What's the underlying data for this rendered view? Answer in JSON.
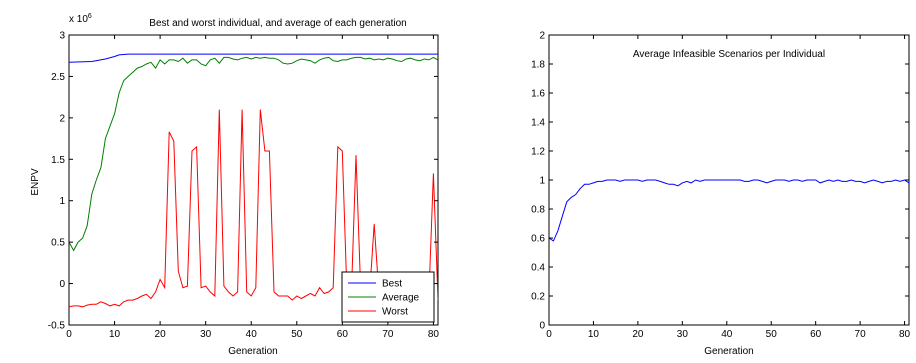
{
  "chart_data": [
    {
      "type": "line",
      "title": "Best and worst individual, and average of each generation",
      "xlabel": "Generation",
      "ylabel": "ENPV",
      "y_exponent_label": "x 10",
      "y_exponent_power": "6",
      "xlim": [
        0,
        81
      ],
      "ylim": [
        -0.5,
        3
      ],
      "xticks": [
        0,
        10,
        20,
        30,
        40,
        50,
        60,
        70,
        80
      ],
      "yticks": [
        -0.5,
        0,
        0.5,
        1,
        1.5,
        2,
        2.5,
        3
      ],
      "ytick_labels": [
        "-0.5",
        "0",
        "0.5",
        "1",
        "1.5",
        "2",
        "2.5",
        "3"
      ],
      "legend_position": "bottom-right",
      "colors": {
        "Best": "#0000ff",
        "Average": "#008000",
        "Worst": "#ff0000"
      },
      "series": [
        {
          "name": "Best",
          "x": [
            0,
            5,
            8,
            10,
            11,
            13,
            20,
            81
          ],
          "y": [
            2.67,
            2.68,
            2.71,
            2.74,
            2.76,
            2.77,
            2.77,
            2.77
          ]
        },
        {
          "name": "Average",
          "x": [
            0,
            1,
            2,
            3,
            4,
            5,
            6,
            7,
            8,
            9,
            10,
            11,
            12,
            13,
            14,
            15,
            16,
            17,
            18,
            19,
            20,
            21,
            22,
            23,
            24,
            25,
            26,
            27,
            28,
            29,
            30,
            31,
            32,
            33,
            34,
            35,
            36,
            37,
            38,
            39,
            40,
            41,
            42,
            43,
            44,
            45,
            46,
            47,
            48,
            49,
            50,
            51,
            52,
            53,
            54,
            55,
            56,
            57,
            58,
            59,
            60,
            61,
            62,
            63,
            64,
            65,
            66,
            67,
            68,
            69,
            70,
            71,
            72,
            73,
            74,
            75,
            76,
            77,
            78,
            79,
            80,
            81
          ],
          "y": [
            0.5,
            0.4,
            0.5,
            0.55,
            0.7,
            1.08,
            1.25,
            1.4,
            1.75,
            1.9,
            2.05,
            2.3,
            2.45,
            2.5,
            2.55,
            2.6,
            2.62,
            2.65,
            2.67,
            2.6,
            2.7,
            2.65,
            2.7,
            2.7,
            2.68,
            2.72,
            2.66,
            2.7,
            2.7,
            2.65,
            2.63,
            2.7,
            2.72,
            2.66,
            2.73,
            2.73,
            2.71,
            2.7,
            2.72,
            2.73,
            2.71,
            2.73,
            2.72,
            2.73,
            2.72,
            2.72,
            2.7,
            2.66,
            2.65,
            2.66,
            2.69,
            2.71,
            2.7,
            2.69,
            2.66,
            2.7,
            2.72,
            2.73,
            2.69,
            2.68,
            2.7,
            2.7,
            2.72,
            2.73,
            2.73,
            2.71,
            2.72,
            2.7,
            2.71,
            2.7,
            2.72,
            2.71,
            2.69,
            2.68,
            2.71,
            2.72,
            2.7,
            2.69,
            2.71,
            2.7,
            2.73,
            2.7
          ]
        },
        {
          "name": "Worst",
          "x": [
            0,
            1,
            2,
            3,
            4,
            5,
            6,
            7,
            8,
            9,
            10,
            11,
            12,
            13,
            14,
            15,
            16,
            17,
            18,
            19,
            20,
            21,
            22,
            23,
            24,
            25,
            26,
            27,
            28,
            29,
            30,
            31,
            32,
            33,
            34,
            35,
            36,
            37,
            38,
            39,
            40,
            41,
            42,
            43,
            44,
            45,
            46,
            47,
            48,
            49,
            50,
            51,
            52,
            53,
            54,
            55,
            56,
            57,
            58,
            59,
            60,
            61,
            62,
            63,
            64,
            65,
            66,
            67,
            68,
            69,
            70,
            71,
            72,
            73,
            74,
            75,
            76,
            77,
            78,
            79,
            80,
            81
          ],
          "y": [
            -0.28,
            -0.27,
            -0.27,
            -0.28,
            -0.26,
            -0.25,
            -0.25,
            -0.22,
            -0.24,
            -0.27,
            -0.25,
            -0.27,
            -0.22,
            -0.2,
            -0.2,
            -0.18,
            -0.15,
            -0.13,
            -0.18,
            -0.1,
            0.05,
            -0.05,
            1.83,
            1.72,
            0.15,
            -0.05,
            -0.03,
            1.6,
            1.65,
            -0.05,
            -0.03,
            -0.1,
            -0.15,
            2.1,
            -0.03,
            -0.1,
            -0.15,
            -0.1,
            2.1,
            -0.1,
            -0.15,
            -0.05,
            2.1,
            1.6,
            1.6,
            -0.1,
            -0.15,
            -0.15,
            -0.15,
            -0.2,
            -0.15,
            -0.18,
            -0.15,
            -0.12,
            -0.15,
            -0.05,
            -0.12,
            -0.1,
            -0.05,
            1.65,
            1.6,
            -0.1,
            -0.12,
            1.55,
            -0.05,
            -0.12,
            -0.1,
            0.72,
            -0.1,
            -0.12,
            -0.12,
            -0.1,
            -0.15,
            -0.12,
            -0.1,
            -0.12,
            -0.1,
            -0.12,
            -0.1,
            -0.15,
            1.33,
            -0.2
          ]
        }
      ]
    },
    {
      "type": "line",
      "title": "Average Infeasible Scenarios per Individual",
      "xlabel": "Generation",
      "ylabel": "",
      "xlim": [
        0,
        81
      ],
      "ylim": [
        0,
        2
      ],
      "xticks": [
        0,
        10,
        20,
        30,
        40,
        50,
        60,
        70,
        80
      ],
      "yticks": [
        0,
        0.2,
        0.4,
        0.6,
        0.8,
        1,
        1.2,
        1.4,
        1.6,
        1.8,
        2
      ],
      "ytick_labels": [
        "0",
        "0.2",
        "0.4",
        "0.6",
        "0.8",
        "1",
        "1.2",
        "1.4",
        "1.6",
        "1.8",
        "2"
      ],
      "colors": {
        "line": "#0000ff"
      },
      "series": [
        {
          "x": [
            0,
            1,
            2,
            3,
            4,
            5,
            6,
            7,
            8,
            9,
            10,
            11,
            12,
            13,
            14,
            15,
            16,
            17,
            18,
            19,
            20,
            21,
            22,
            23,
            24,
            25,
            26,
            27,
            28,
            29,
            30,
            31,
            32,
            33,
            34,
            35,
            36,
            37,
            38,
            39,
            40,
            41,
            42,
            43,
            44,
            45,
            46,
            47,
            48,
            49,
            50,
            51,
            52,
            53,
            54,
            55,
            56,
            57,
            58,
            59,
            60,
            61,
            62,
            63,
            64,
            65,
            66,
            67,
            68,
            69,
            70,
            71,
            72,
            73,
            74,
            75,
            76,
            77,
            78,
            79,
            80,
            81
          ],
          "y": [
            0.6,
            0.58,
            0.65,
            0.75,
            0.85,
            0.88,
            0.9,
            0.94,
            0.97,
            0.97,
            0.98,
            0.99,
            0.99,
            1.0,
            1.0,
            1.0,
            0.99,
            1.0,
            1.0,
            1.0,
            1.0,
            0.99,
            1.0,
            1.0,
            1.0,
            0.99,
            0.98,
            0.97,
            0.97,
            0.96,
            0.98,
            0.99,
            0.98,
            1.0,
            0.99,
            1.0,
            1.0,
            1.0,
            1.0,
            1.0,
            1.0,
            1.0,
            1.0,
            1.0,
            0.99,
            0.99,
            1.0,
            1.0,
            0.99,
            0.98,
            0.99,
            1.0,
            1.0,
            1.0,
            0.99,
            1.0,
            1.0,
            0.99,
            1.0,
            1.0,
            1.0,
            0.98,
            0.99,
            1.0,
            0.99,
            1.0,
            0.99,
            0.99,
            1.0,
            0.99,
            0.99,
            0.98,
            0.99,
            1.0,
            0.99,
            0.98,
            0.99,
            0.99,
            1.0,
            0.99,
            1.0,
            0.98
          ]
        }
      ]
    }
  ]
}
